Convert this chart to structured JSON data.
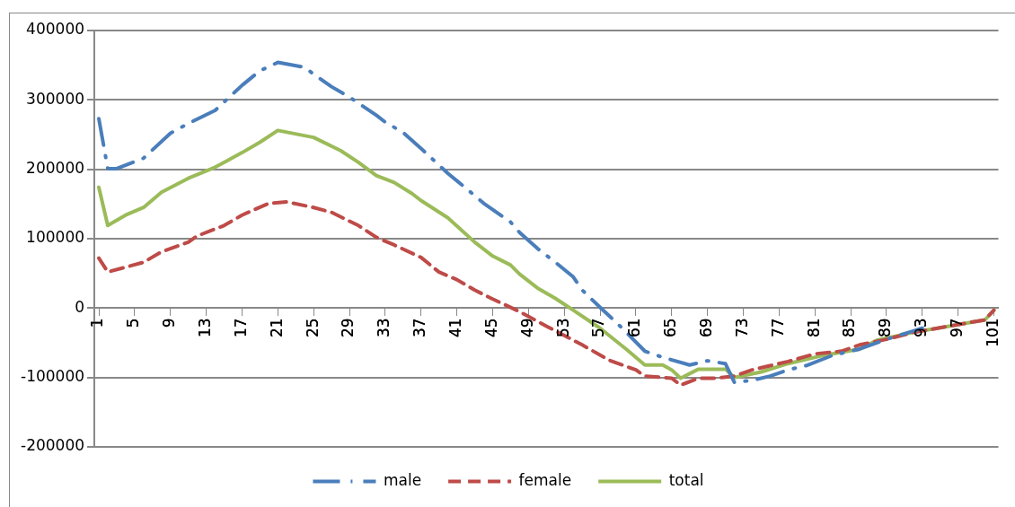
{
  "chart_data": {
    "type": "line",
    "ylim": [
      -200000,
      400000
    ],
    "yticks": [
      -200000,
      -100000,
      0,
      100000,
      200000,
      300000,
      400000
    ],
    "xlim": [
      0.5,
      101.5
    ],
    "xticks": [
      1,
      5,
      9,
      13,
      17,
      21,
      25,
      29,
      33,
      37,
      41,
      45,
      49,
      53,
      57,
      61,
      65,
      69,
      73,
      77,
      81,
      85,
      89,
      93,
      97,
      101
    ],
    "grid": "y",
    "legend": "bottom",
    "marker": "none",
    "series": [
      {
        "name": "male",
        "color": "#4a7ebb",
        "line_style": "dashdot",
        "x": [
          1,
          2,
          3,
          6,
          9,
          11,
          14,
          17,
          19,
          21,
          24,
          25,
          27,
          29,
          32,
          33,
          35,
          37,
          40,
          42,
          44,
          47,
          48,
          50,
          52,
          54,
          55,
          57,
          59,
          62,
          64,
          67,
          69,
          71,
          72,
          74,
          76,
          78,
          80,
          83,
          86,
          89,
          93
        ],
        "values": [
          273000,
          201000,
          201000,
          216000,
          252000,
          266000,
          285000,
          321000,
          342000,
          354000,
          347000,
          337000,
          319000,
          304000,
          278000,
          268000,
          253000,
          230000,
          194000,
          173000,
          151000,
          124000,
          109000,
          86000,
          66000,
          45000,
          26000,
          1000,
          -23000,
          -62000,
          -71000,
          -82000,
          -76000,
          -80000,
          -107000,
          -104000,
          -98000,
          -89000,
          -83000,
          -68000,
          -59000,
          -45000,
          -29000
        ]
      },
      {
        "name": "female",
        "color": "#be4b48",
        "line_style": "dashed",
        "x": [
          1,
          2,
          4,
          6,
          8,
          11,
          12,
          15,
          17,
          20,
          22,
          25,
          27,
          30,
          32,
          34,
          37,
          39,
          41,
          43,
          45,
          48,
          51,
          55,
          58,
          61,
          62,
          65,
          66,
          68,
          70,
          72,
          74,
          76,
          78,
          81,
          84,
          86,
          89,
          92,
          96,
          100,
          101
        ],
        "values": [
          72000,
          52000,
          59000,
          66000,
          81000,
          95000,
          104000,
          119000,
          134000,
          151000,
          153000,
          145000,
          138000,
          119000,
          102000,
          91000,
          73000,
          52000,
          41000,
          26000,
          13000,
          -5000,
          -26000,
          -53000,
          -75000,
          -89000,
          -98000,
          -101000,
          -111000,
          -101000,
          -101000,
          -98000,
          -89000,
          -83000,
          -77000,
          -66000,
          -62000,
          -53000,
          -45000,
          -35000,
          -26000,
          -17000,
          -3000
        ]
      },
      {
        "name": "total",
        "color": "#9bbb59",
        "line_style": "solid",
        "x": [
          1,
          2,
          4,
          6,
          8,
          11,
          14,
          17,
          19,
          21,
          25,
          28,
          30,
          32,
          34,
          36,
          37,
          40,
          43,
          45,
          47,
          48,
          50,
          52,
          54,
          57,
          60,
          62,
          64,
          65,
          66,
          68,
          71,
          72,
          75,
          78,
          82,
          86,
          88,
          92,
          96,
          100,
          101
        ],
        "values": [
          174000,
          119000,
          134000,
          145000,
          167000,
          187000,
          203000,
          224000,
          239000,
          256000,
          246000,
          227000,
          210000,
          191000,
          181000,
          165000,
          155000,
          130000,
          95000,
          75000,
          62000,
          49000,
          29000,
          14000,
          -3000,
          -29000,
          -60000,
          -82000,
          -82000,
          -89000,
          -101000,
          -88000,
          -88000,
          -100000,
          -92000,
          -80000,
          -68000,
          -59000,
          -46000,
          -35000,
          -26000,
          -17000,
          -3000
        ]
      }
    ]
  }
}
